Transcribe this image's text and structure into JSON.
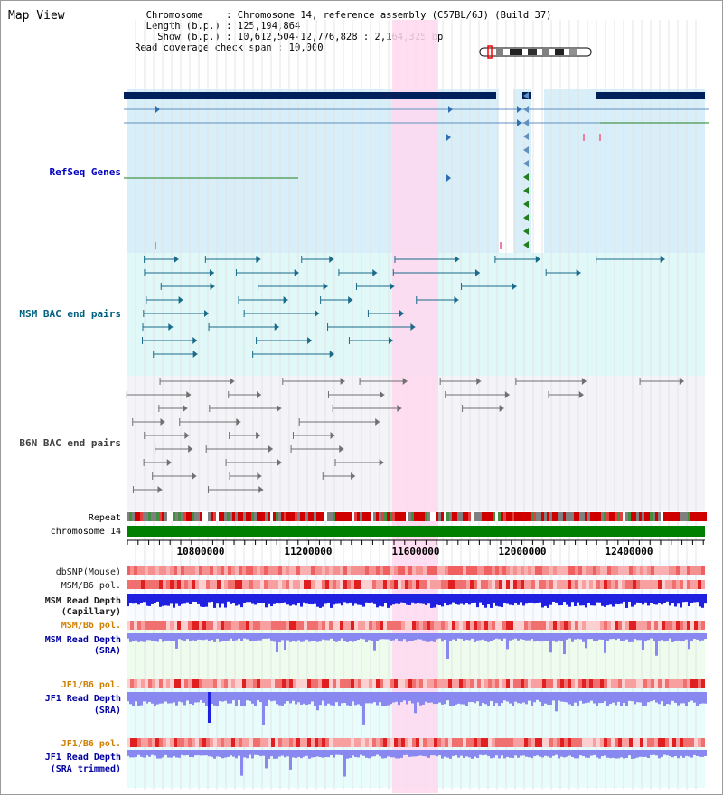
{
  "header": {
    "title": "Map View",
    "info_lines": [
      "  Chromosome    : Chromosome 14, reference assembly (C57BL/6J) (Build 37)",
      "  Length (b.p.) : 125,194,864",
      "    Show (b.p.) : 10,612,504-12,776,828 : 2,164,325 bp",
      "Read coverage check span : 10,000"
    ]
  },
  "tracks": {
    "refseq": "RefSeq Genes",
    "msm_bac": "MSM BAC end pairs",
    "b6n_bac": "B6N BAC end pairs",
    "repeat": "Repeat",
    "chrom": "chromosome 14",
    "dbsnp": "dbSNP(Mouse)",
    "msm_b6_pol_1": "MSM/B6 pol.",
    "msm_depth_cap_1": "MSM Read Depth",
    "msm_depth_cap_2": "(Capillary)",
    "msm_b6_pol_2": "MSM/B6 pol.",
    "msm_depth_sra_1": "MSM Read Depth",
    "msm_depth_sra_2": "(SRA)",
    "jf1_b6_pol_1": "JF1/B6 pol.",
    "jf1_depth_sra_1": "JF1 Read Depth",
    "jf1_depth_sra_2": "(SRA)",
    "jf1_b6_pol_2": "JF1/B6 pol.",
    "jf1_depth_trim_1": "JF1 Read Depth",
    "jf1_depth_trim_2": "(SRA trimmed)"
  },
  "ruler": {
    "ticks": [
      "10800000",
      "11200000",
      "11600000",
      "12000000",
      "12400000"
    ]
  },
  "colors": {
    "refseq_label": "#0000c0",
    "msm_label": "#006080",
    "b6n_label": "#404040",
    "dark_label": "#000000",
    "msm_depth_label": "#0000a0",
    "pol_orange": "#d08000",
    "refseq_bg": "#d8eef8",
    "msm_bg": "#e0f8f8",
    "b6n_bg": "#f4f4f8",
    "highlight": "#ffd8f0",
    "depth_blue": "#2020e0",
    "depth_light": "#8888f0",
    "chrom_green": "#008000",
    "snp_red": "#f08080"
  }
}
